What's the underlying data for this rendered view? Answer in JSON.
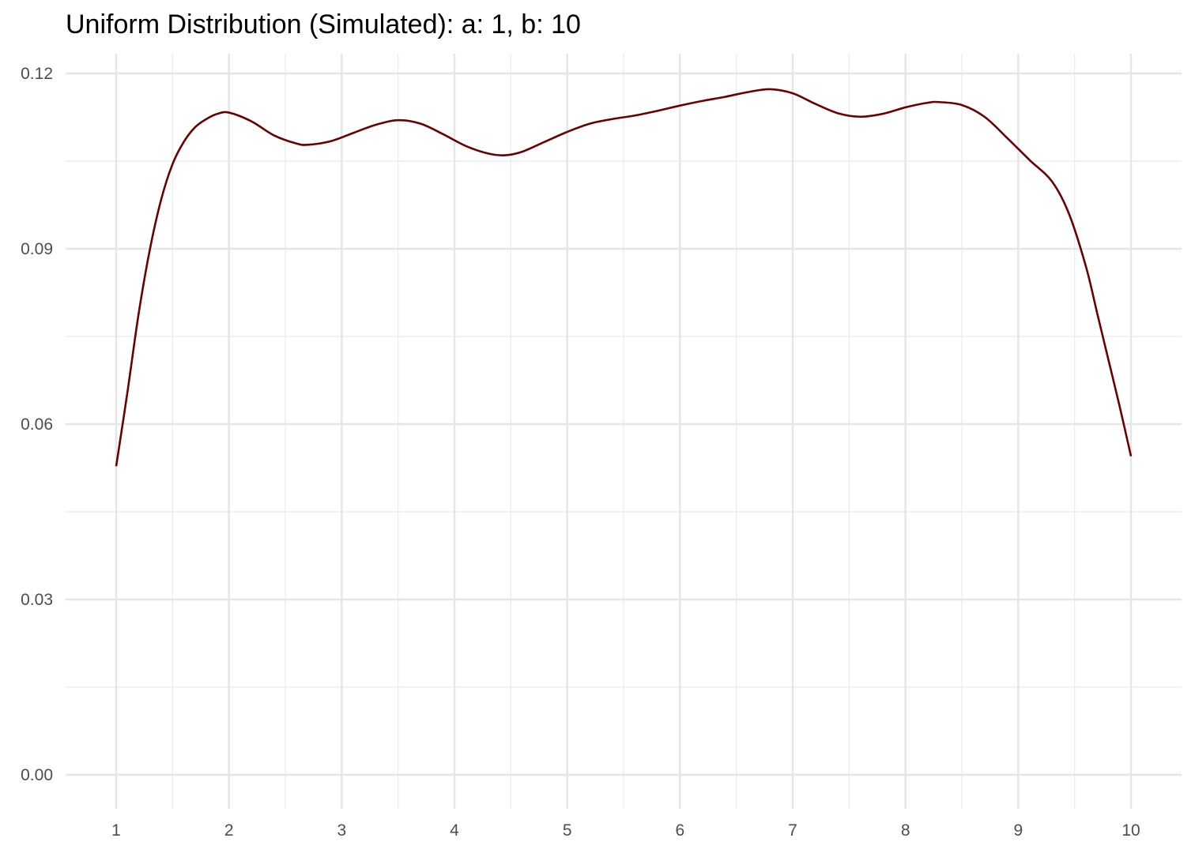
{
  "chart_data": {
    "type": "line",
    "title": "Uniform Distribution (Simulated): a: 1, b: 10",
    "xlabel": "",
    "ylabel": "",
    "xlim": [
      1,
      10
    ],
    "ylim": [
      0,
      0.12
    ],
    "x_ticks": [
      1,
      2,
      3,
      4,
      5,
      6,
      7,
      8,
      9,
      10
    ],
    "x_tick_labels": [
      "1",
      "2",
      "3",
      "4",
      "5",
      "6",
      "7",
      "8",
      "9",
      "10"
    ],
    "y_ticks": [
      0,
      0.03,
      0.06,
      0.09,
      0.12
    ],
    "y_tick_labels": [
      "0.00",
      "0.03",
      "0.06",
      "0.09",
      "0.12"
    ],
    "grid": true,
    "legend": "none",
    "line_color": "#6b0000",
    "series": [
      {
        "x": [
          1.0,
          1.1,
          1.2,
          1.3,
          1.4,
          1.5,
          1.6,
          1.7,
          1.8,
          1.9,
          2.0,
          2.2,
          2.4,
          2.6,
          2.7,
          2.9,
          3.1,
          3.3,
          3.5,
          3.7,
          3.9,
          4.1,
          4.3,
          4.45,
          4.6,
          4.8,
          5.0,
          5.2,
          5.4,
          5.6,
          5.8,
          6.0,
          6.2,
          6.4,
          6.6,
          6.8,
          7.0,
          7.2,
          7.4,
          7.6,
          7.8,
          8.0,
          8.2,
          8.3,
          8.5,
          8.7,
          8.9,
          9.1,
          9.3,
          9.45,
          9.6,
          9.7,
          9.8,
          9.9,
          10.0
        ],
        "y": [
          0.0528,
          0.0655,
          0.079,
          0.09,
          0.0985,
          0.1045,
          0.1083,
          0.1108,
          0.1122,
          0.1131,
          0.1133,
          0.1118,
          0.1094,
          0.108,
          0.1078,
          0.1084,
          0.1098,
          0.1112,
          0.112,
          0.1114,
          0.1096,
          0.1076,
          0.1063,
          0.106,
          0.1066,
          0.1083,
          0.11,
          0.1114,
          0.1122,
          0.1128,
          0.1136,
          0.1145,
          0.1153,
          0.116,
          0.1168,
          0.1173,
          0.1166,
          0.1148,
          0.1132,
          0.1126,
          0.1131,
          0.1142,
          0.115,
          0.1151,
          0.1146,
          0.1126,
          0.109,
          0.1052,
          0.1015,
          0.096,
          0.087,
          0.079,
          0.071,
          0.063,
          0.0545
        ]
      }
    ]
  }
}
